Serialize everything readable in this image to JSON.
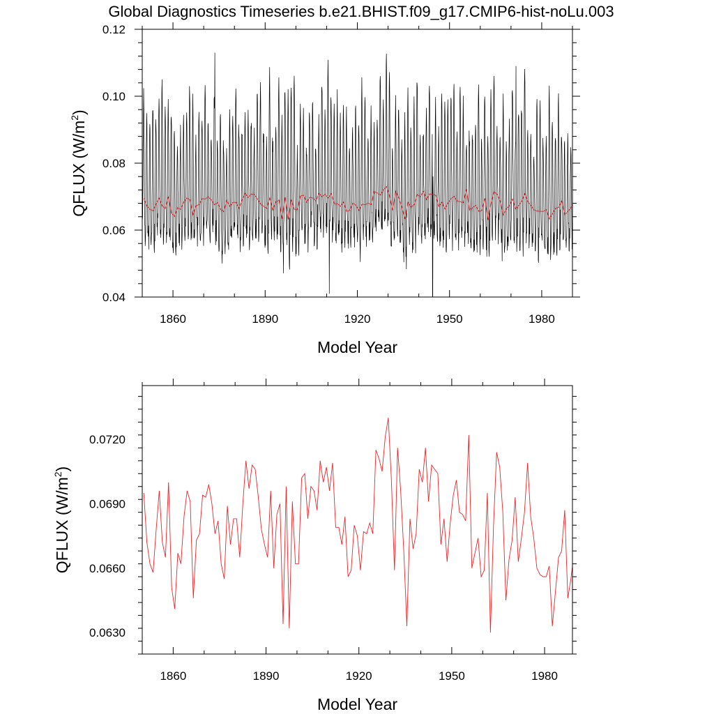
{
  "title": "Global Diagnostics Timeseries b.e21.BHIST.f09_g17.CMIP6-hist-noLu.003",
  "chart_data": [
    {
      "type": "line",
      "xlabel": "Model Year",
      "ylabel_main": "QFLUX (W/m",
      "ylabel_sup": "2",
      "ylabel_close": ")",
      "xlim": [
        1850,
        1990
      ],
      "ylim": [
        0.04,
        0.12
      ],
      "xticks": [
        1860,
        1890,
        1920,
        1950,
        1980
      ],
      "yticks": [
        0.04,
        0.06,
        0.08,
        0.1,
        0.12
      ],
      "ytick_labels": [
        "0.04",
        "0.06",
        "0.08",
        "0.10",
        "0.12"
      ],
      "series": [
        {
          "color": "#000000",
          "monthly_cycle": [
            0.1,
            0.05,
            0.28,
            0.62,
            0.86,
            0.95,
            0.82,
            0.55,
            0.3,
            0.12,
            0.03,
            0.0
          ],
          "trough_baseline": 0.056,
          "peak_baseline": 0.097,
          "notable_extremes": [
            {
              "x": 1873.6,
              "y": 0.113
            },
            {
              "x": 1910.9,
              "y": 0.041
            },
            {
              "x": 1944.5,
              "y": 0.04
            },
            {
              "x": 1971.6,
              "y": 0.109
            }
          ]
        },
        {
          "color": "#e8262a",
          "x_start": 1850,
          "x_step": 1,
          "values": [
            0.0695,
            0.0672,
            0.0662,
            0.0658,
            0.0678,
            0.0696,
            0.0672,
            0.0665,
            0.07,
            0.0651,
            0.0641,
            0.0667,
            0.0662,
            0.0684,
            0.0696,
            0.0691,
            0.0646,
            0.0673,
            0.0676,
            0.0694,
            0.0693,
            0.0699,
            0.069,
            0.0676,
            0.0682,
            0.0662,
            0.0655,
            0.0689,
            0.0671,
            0.0683,
            0.0683,
            0.0665,
            0.069,
            0.071,
            0.0697,
            0.0708,
            0.0706,
            0.0693,
            0.0678,
            0.0671,
            0.0665,
            0.0696,
            0.066,
            0.0685,
            0.069,
            0.0634,
            0.0698,
            0.0632,
            0.0691,
            0.0662,
            0.0662,
            0.0702,
            0.0704,
            0.0683,
            0.0698,
            0.0696,
            0.0687,
            0.071,
            0.07,
            0.0707,
            0.0696,
            0.0709,
            0.0679,
            0.0679,
            0.0671,
            0.0684,
            0.0656,
            0.0659,
            0.068,
            0.0675,
            0.0659,
            0.0677,
            0.0676,
            0.0681,
            0.0676,
            0.0715,
            0.0711,
            0.0705,
            0.0721,
            0.073,
            0.0701,
            0.0659,
            0.0716,
            0.0696,
            0.0668,
            0.0633,
            0.0683,
            0.0669,
            0.0676,
            0.0706,
            0.07,
            0.0716,
            0.0691,
            0.0708,
            0.0706,
            0.0704,
            0.0671,
            0.0683,
            0.0663,
            0.0681,
            0.0694,
            0.0701,
            0.0686,
            0.0685,
            0.0682,
            0.0722,
            0.066,
            0.0667,
            0.0674,
            0.0656,
            0.0659,
            0.0695,
            0.063,
            0.068,
            0.0714,
            0.0707,
            0.0686,
            0.0645,
            0.0664,
            0.0673,
            0.0693,
            0.0663,
            0.0674,
            0.0686,
            0.0709,
            0.0684,
            0.0674,
            0.066,
            0.0657,
            0.0656,
            0.0656,
            0.0661,
            0.0633,
            0.0649,
            0.0665,
            0.0668,
            0.0687,
            0.0646,
            0.0655,
            0.0667,
            0.069,
            0.0652,
            0.0662
          ]
        }
      ]
    },
    {
      "type": "line",
      "xlabel": "Model Year",
      "ylabel_main": "QFLUX (W/m",
      "ylabel_sup": "2",
      "ylabel_close": ")",
      "xlim": [
        1850,
        1989
      ],
      "ylim": [
        0.062,
        0.0745
      ],
      "xticks": [
        1860,
        1890,
        1920,
        1950,
        1980
      ],
      "yticks": [
        0.063,
        0.066,
        0.069,
        0.072
      ],
      "ytick_labels": [
        "0.0630",
        "0.0660",
        "0.0690",
        "0.0720"
      ],
      "series_ref": "same annual values as top-panel red series",
      "color": "#e8262a"
    }
  ]
}
